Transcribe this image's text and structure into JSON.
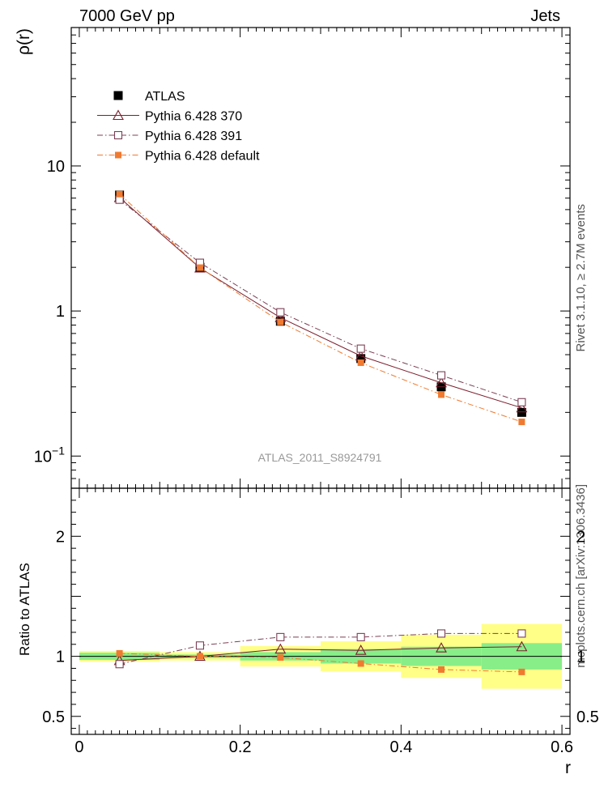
{
  "header": {
    "left": "7000 GeV pp",
    "right": "Jets"
  },
  "side_labels": {
    "rivet": "Rivet 3.1.10, ≥ 2.7M events",
    "mcplots": "mcplots.cern.ch [arXiv:1306.3436]"
  },
  "chart_data": [
    {
      "type": "line",
      "panel": "main",
      "analysis_label": "ATLAS_2011_S8924791",
      "ylabel": "ρ(r)",
      "xlabel": "",
      "yscale": "log",
      "xlim": [
        -0.01,
        0.61
      ],
      "ylim": [
        0.06,
        90
      ],
      "y_ticks": [
        {
          "value": 0.1,
          "base": "10",
          "exp": "−1"
        },
        {
          "value": 1,
          "label": "1"
        },
        {
          "value": 10,
          "label": "10"
        }
      ],
      "x": [
        0.05,
        0.15,
        0.25,
        0.35,
        0.45,
        0.55
      ],
      "legend_position": "top-left",
      "series": [
        {
          "name": "ATLAS",
          "color": "#000000",
          "marker": "filled-square",
          "line": "none",
          "values": [
            6.3,
            2.0,
            0.85,
            0.47,
            0.3,
            0.2
          ]
        },
        {
          "name": "Pythia 6.428 370",
          "color": "#7b1e2c",
          "marker": "open-triangle",
          "line": "solid",
          "values": [
            6.05,
            1.98,
            0.9,
            0.49,
            0.32,
            0.215
          ]
        },
        {
          "name": "Pythia 6.428 391",
          "color": "#7b3f55",
          "marker": "open-square",
          "line": "dash-dot",
          "values": [
            5.85,
            2.15,
            0.98,
            0.55,
            0.36,
            0.235
          ]
        },
        {
          "name": "Pythia 6.428 default",
          "color": "#f07a30",
          "marker": "small-filled-square",
          "line": "dash-dot",
          "values": [
            6.4,
            1.99,
            0.84,
            0.44,
            0.265,
            0.172
          ]
        }
      ]
    },
    {
      "type": "line",
      "panel": "ratio",
      "ylabel": "Ratio to ATLAS",
      "xlabel": "r",
      "xlim": [
        -0.01,
        0.61
      ],
      "ylim": [
        0.35,
        2.4
      ],
      "x_ticks": [
        "0",
        "0.2",
        "0.4",
        "0.6"
      ],
      "y_ticks": [
        "0.5",
        "1",
        "2"
      ],
      "x": [
        0.05,
        0.15,
        0.25,
        0.35,
        0.45,
        0.55
      ],
      "bins": [
        [
          0.0,
          0.1
        ],
        [
          0.1,
          0.2
        ],
        [
          0.2,
          0.3
        ],
        [
          0.3,
          0.4
        ],
        [
          0.4,
          0.5
        ],
        [
          0.5,
          0.6
        ]
      ],
      "bands": {
        "stat_color": "#88ee88",
        "total_color": "#ffff88",
        "stat": [
          [
            0.97,
            1.03
          ],
          [
            0.985,
            1.015
          ],
          [
            0.965,
            1.035
          ],
          [
            0.94,
            1.06
          ],
          [
            0.92,
            1.08
          ],
          [
            0.89,
            1.11
          ]
        ],
        "total": [
          [
            0.955,
            1.045
          ],
          [
            0.965,
            1.035
          ],
          [
            0.915,
            1.085
          ],
          [
            0.875,
            1.125
          ],
          [
            0.82,
            1.18
          ],
          [
            0.73,
            1.27
          ]
        ]
      },
      "series": [
        {
          "name": "Pythia 6.428 370",
          "color": "#7b1e2c",
          "marker": "open-triangle",
          "line": "solid",
          "values": [
            0.965,
            1.0,
            1.06,
            1.05,
            1.07,
            1.08
          ]
        },
        {
          "name": "Pythia 6.428 391",
          "color": "#7b3f55",
          "marker": "open-square",
          "line": "dash-dot",
          "values": [
            0.935,
            1.09,
            1.16,
            1.16,
            1.19,
            1.19
          ]
        },
        {
          "name": "Pythia 6.428 default",
          "color": "#f07a30",
          "marker": "small-filled-square",
          "line": "dash-dot",
          "values": [
            1.025,
            1.0,
            0.99,
            0.94,
            0.89,
            0.87
          ]
        }
      ]
    }
  ]
}
